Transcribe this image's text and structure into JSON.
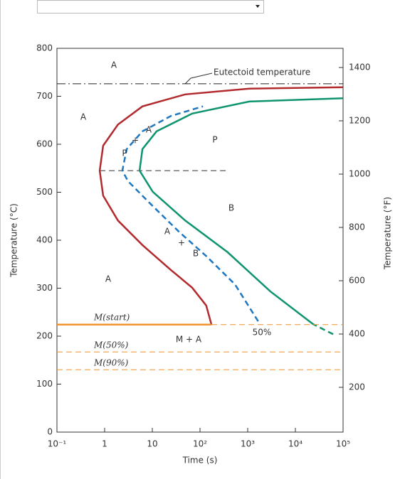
{
  "chart_data": {
    "type": "line",
    "xlabel": "Time (s)",
    "ylabel": "Temperature (°C)",
    "y2label": "Temperature (°F)",
    "xscale": "log",
    "xlim": [
      0.1,
      100000
    ],
    "xticks": [
      {
        "value": 0.1,
        "label": "10⁻¹"
      },
      1,
      10,
      {
        "value": 100,
        "label": "10²"
      },
      {
        "value": 1000,
        "label": "10³"
      },
      {
        "value": 10000,
        "label": "10⁴"
      },
      {
        "value": 100000,
        "label": "10⁵"
      }
    ],
    "ylim": [
      0,
      800
    ],
    "yticks": [
      0,
      100,
      200,
      300,
      400,
      500,
      600,
      700,
      800
    ],
    "y2lim": [
      32,
      1472
    ],
    "y2ticks": [
      200,
      400,
      600,
      800,
      1000,
      1200,
      1400
    ],
    "series": [
      {
        "color": "#222",
        "dash": "dashdot",
        "width": 1,
        "x": [
          0.1,
          100000
        ],
        "values": [
          726,
          726
        ]
      },
      {
        "color": "#333",
        "dash": "dash",
        "width": 1,
        "x": [
          0.79,
          380
        ],
        "values": [
          545,
          545
        ]
      },
      {
        "color": "#b22a2e",
        "dash": "solid",
        "width": 2.5,
        "x": [
          174,
          135,
          68.5,
          24.5,
          6.2,
          1.9,
          0.93,
          0.79,
          0.93,
          1.9,
          6.2,
          49,
          1070,
          100000
        ],
        "values": [
          224,
          264,
          301,
          338,
          390,
          441,
          493,
          545,
          597,
          641,
          679,
          704,
          716,
          719
        ]
      },
      {
        "color": "#1f78c1",
        "dash": "dash",
        "width": 2.5,
        "x": [
          1660,
          540,
          135,
          35,
          8.7,
          3.1,
          2.35,
          2.9,
          6.2,
          24.5,
          115
        ],
        "values": [
          231,
          308,
          367,
          419,
          478,
          523,
          545,
          590,
          627,
          659,
          679
        ]
      },
      {
        "color": "#0f9470",
        "dash": "solid",
        "width": 2.5,
        "x": [
          23500,
          3000,
          380,
          49,
          10.2,
          5.4,
          6.2,
          12.3,
          68.5,
          1070,
          100000
        ],
        "values": [
          225,
          293,
          375,
          441,
          501,
          545,
          590,
          627,
          664,
          689,
          696
        ]
      },
      {
        "color": "#0f9470",
        "dash": "dash",
        "width": 2.5,
        "x": [
          62000,
          23500
        ],
        "values": [
          204,
          225
        ]
      },
      {
        "color": "#f0932e",
        "dash": "solid",
        "width": 2.5,
        "x": [
          0.1,
          174
        ],
        "values": [
          224,
          224
        ]
      },
      {
        "color": "#f0932e",
        "dash": "dash",
        "width": 1,
        "x": [
          174,
          100000
        ],
        "values": [
          224,
          224
        ]
      },
      {
        "color": "#f0932e",
        "dash": "dash",
        "width": 1,
        "x": [
          0.1,
          100000
        ],
        "values": [
          167,
          167
        ]
      },
      {
        "color": "#f0932e",
        "dash": "dash",
        "width": 1,
        "x": [
          0.1,
          100000
        ],
        "values": [
          130,
          130
        ]
      }
    ],
    "annotations": [
      "A",
      "Eutectoid temperature",
      "A",
      "+",
      "A",
      "P",
      "P",
      "B",
      "A",
      "+",
      "B",
      "A",
      "M(start)",
      "M + A",
      "50%",
      "M(50%)",
      "M(90%)"
    ]
  }
}
